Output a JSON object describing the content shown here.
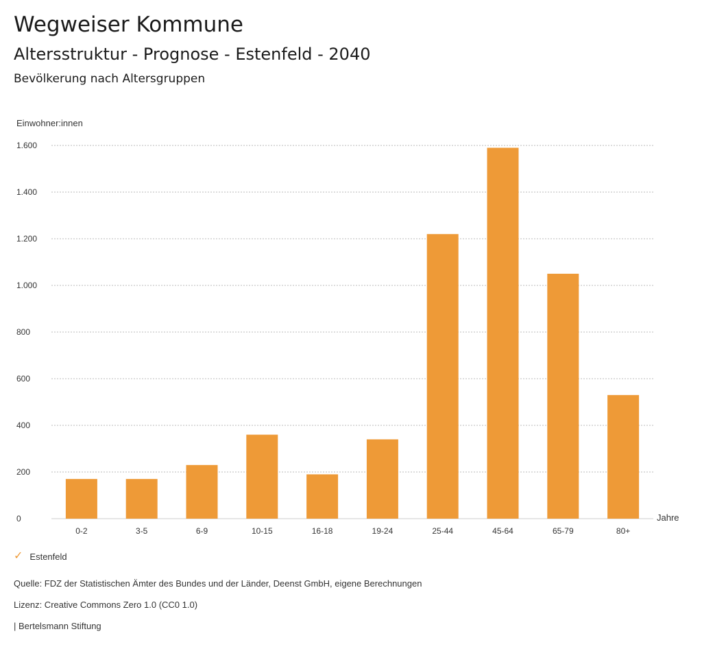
{
  "header": {
    "title": "Wegweiser Kommune",
    "subtitle": "Altersstruktur - Prognose - Estenfeld - 2040",
    "section": "Bevölkerung nach Altersgruppen"
  },
  "chart_data": {
    "type": "bar",
    "ylabel": "Einwohner:innen",
    "xlabel": "Jahre",
    "categories": [
      "0-2",
      "3-5",
      "6-9",
      "10-15",
      "16-18",
      "19-24",
      "25-44",
      "45-64",
      "65-79",
      "80+"
    ],
    "series": [
      {
        "name": "Estenfeld",
        "color": "#ee9a37",
        "values": [
          170,
          170,
          230,
          360,
          190,
          340,
          1220,
          1590,
          1050,
          530
        ]
      }
    ],
    "yticks": [
      0,
      200,
      400,
      600,
      800,
      1000,
      1200,
      1400,
      1600
    ],
    "ytick_labels": [
      "0",
      "200",
      "400",
      "600",
      "800",
      "1.000",
      "1.200",
      "1.400",
      "1.600"
    ],
    "ylim": [
      0,
      1600
    ],
    "grid": true,
    "legend_position": "bottom-left"
  },
  "legend": {
    "label": "Estenfeld"
  },
  "footer": {
    "source": "Quelle: FDZ der Statistischen Ämter des Bundes und der Länder, Deenst GmbH, eigene Berechnungen",
    "license": "Lizenz: Creative Commons Zero 1.0 (CC0 1.0)",
    "publisher": "| Bertelsmann Stiftung"
  }
}
